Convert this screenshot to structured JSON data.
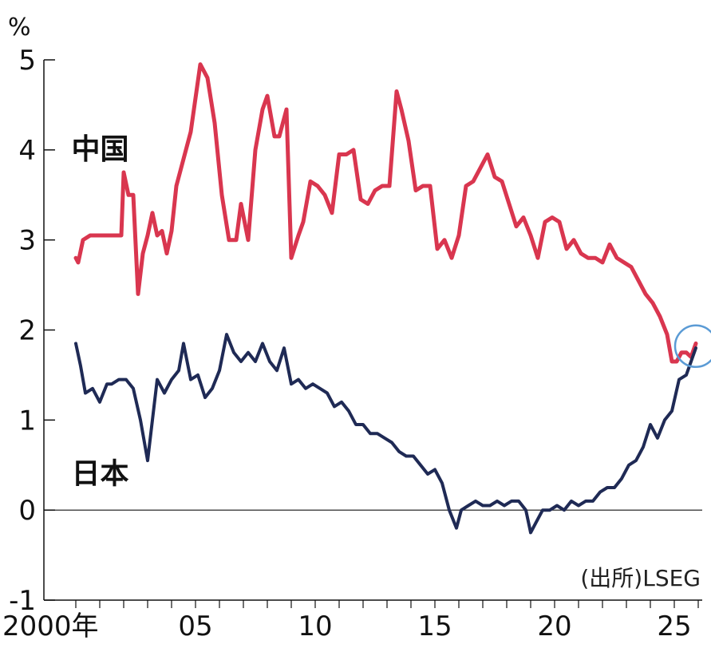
{
  "chart_data": {
    "type": "line",
    "unit_label": "%",
    "source": "(出所)LSEG",
    "ylim": [
      -1,
      5
    ],
    "xlim": [
      2000,
      2026
    ],
    "y_ticks": [
      {
        "value": 5,
        "label": "5"
      },
      {
        "value": 4,
        "label": "4"
      },
      {
        "value": 3,
        "label": "3"
      },
      {
        "value": 2,
        "label": "2"
      },
      {
        "value": 1,
        "label": "1"
      },
      {
        "value": 0,
        "label": "0"
      },
      {
        "value": -1,
        "label": "-1"
      }
    ],
    "x_ticks": [
      {
        "value": 2000,
        "label": "2000年"
      },
      {
        "value": 2005,
        "label": "05"
      },
      {
        "value": 2010,
        "label": "10"
      },
      {
        "value": 2015,
        "label": "15"
      },
      {
        "value": 2020,
        "label": "20"
      },
      {
        "value": 2025,
        "label": "25"
      }
    ],
    "highlight": {
      "x": 2025.9,
      "y": 1.82,
      "color": "#5b9bd5"
    },
    "series": [
      {
        "name": "中国",
        "color": "#d9364f",
        "x": [
          2000.0,
          2000.1,
          2000.3,
          2000.6,
          2001.0,
          2001.5,
          2001.9,
          2002.0,
          2002.2,
          2002.4,
          2002.6,
          2002.8,
          2002.9,
          2003.0,
          2003.2,
          2003.4,
          2003.6,
          2003.8,
          2004.0,
          2004.2,
          2004.5,
          2004.8,
          2005.2,
          2005.5,
          2005.8,
          2006.1,
          2006.4,
          2006.7,
          2006.9,
          2007.2,
          2007.5,
          2007.8,
          2008.0,
          2008.3,
          2008.5,
          2008.8,
          2009.0,
          2009.3,
          2009.5,
          2009.8,
          2010.1,
          2010.4,
          2010.7,
          2011.0,
          2011.3,
          2011.6,
          2011.9,
          2012.2,
          2012.5,
          2012.8,
          2013.1,
          2013.4,
          2013.6,
          2013.9,
          2014.2,
          2014.5,
          2014.8,
          2015.1,
          2015.4,
          2015.7,
          2016.0,
          2016.3,
          2016.6,
          2016.9,
          2017.2,
          2017.5,
          2017.8,
          2018.1,
          2018.4,
          2018.7,
          2019.0,
          2019.3,
          2019.6,
          2019.9,
          2020.2,
          2020.5,
          2020.8,
          2021.1,
          2021.4,
          2021.7,
          2022.0,
          2022.3,
          2022.6,
          2022.9,
          2023.2,
          2023.5,
          2023.8,
          2024.1,
          2024.4,
          2024.7,
          2024.9,
          2025.1,
          2025.3,
          2025.5,
          2025.7,
          2025.9
        ],
        "values": [
          2.8,
          2.75,
          3.0,
          3.05,
          3.05,
          3.05,
          3.05,
          3.75,
          3.5,
          3.5,
          2.4,
          2.85,
          2.95,
          3.05,
          3.3,
          3.05,
          3.1,
          2.85,
          3.1,
          3.6,
          3.9,
          4.2,
          4.95,
          4.8,
          4.3,
          3.5,
          3.0,
          3.0,
          3.4,
          3.0,
          4.0,
          4.45,
          4.6,
          4.15,
          4.15,
          4.45,
          2.8,
          3.05,
          3.2,
          3.65,
          3.6,
          3.5,
          3.3,
          3.95,
          3.95,
          4.0,
          3.45,
          3.4,
          3.55,
          3.6,
          3.6,
          4.65,
          4.45,
          4.1,
          3.55,
          3.6,
          3.6,
          2.9,
          3.0,
          2.8,
          3.05,
          3.6,
          3.65,
          3.8,
          3.95,
          3.7,
          3.65,
          3.4,
          3.15,
          3.25,
          3.05,
          2.8,
          3.2,
          3.25,
          3.2,
          2.9,
          3.0,
          2.85,
          2.8,
          2.8,
          2.75,
          2.95,
          2.8,
          2.75,
          2.7,
          2.55,
          2.4,
          2.3,
          2.15,
          1.95,
          1.65,
          1.65,
          1.75,
          1.75,
          1.7,
          1.85
        ]
      },
      {
        "name": "日本",
        "color": "#1f2a55",
        "x": [
          2000.0,
          2000.2,
          2000.4,
          2000.7,
          2001.0,
          2001.3,
          2001.5,
          2001.8,
          2002.1,
          2002.4,
          2002.7,
          2003.0,
          2003.2,
          2003.4,
          2003.7,
          2004.0,
          2004.3,
          2004.5,
          2004.8,
          2005.1,
          2005.4,
          2005.7,
          2006.0,
          2006.3,
          2006.6,
          2006.9,
          2007.2,
          2007.5,
          2007.8,
          2008.1,
          2008.4,
          2008.7,
          2009.0,
          2009.3,
          2009.6,
          2009.9,
          2010.2,
          2010.5,
          2010.8,
          2011.1,
          2011.4,
          2011.7,
          2012.0,
          2012.3,
          2012.6,
          2012.9,
          2013.2,
          2013.5,
          2013.8,
          2014.1,
          2014.4,
          2014.7,
          2015.0,
          2015.3,
          2015.6,
          2015.9,
          2016.1,
          2016.4,
          2016.7,
          2017.0,
          2017.3,
          2017.6,
          2017.9,
          2018.2,
          2018.5,
          2018.8,
          2019.0,
          2019.2,
          2019.5,
          2019.8,
          2020.1,
          2020.4,
          2020.7,
          2021.0,
          2021.3,
          2021.6,
          2021.9,
          2022.2,
          2022.5,
          2022.8,
          2023.1,
          2023.4,
          2023.7,
          2024.0,
          2024.3,
          2024.6,
          2024.9,
          2025.2,
          2025.5,
          2025.9
        ],
        "values": [
          1.85,
          1.6,
          1.3,
          1.35,
          1.2,
          1.4,
          1.4,
          1.45,
          1.45,
          1.35,
          1.0,
          0.55,
          1.0,
          1.45,
          1.3,
          1.45,
          1.55,
          1.85,
          1.45,
          1.5,
          1.25,
          1.35,
          1.55,
          1.95,
          1.75,
          1.65,
          1.75,
          1.65,
          1.85,
          1.65,
          1.55,
          1.8,
          1.4,
          1.45,
          1.35,
          1.4,
          1.35,
          1.3,
          1.15,
          1.2,
          1.1,
          0.95,
          0.95,
          0.85,
          0.85,
          0.8,
          0.75,
          0.65,
          0.6,
          0.6,
          0.5,
          0.4,
          0.45,
          0.3,
          0.0,
          -0.2,
          0.0,
          0.05,
          0.1,
          0.05,
          0.05,
          0.1,
          0.05,
          0.1,
          0.1,
          0.0,
          -0.25,
          -0.15,
          0.0,
          0.0,
          0.05,
          0.0,
          0.1,
          0.05,
          0.1,
          0.1,
          0.2,
          0.25,
          0.25,
          0.35,
          0.5,
          0.55,
          0.7,
          0.95,
          0.8,
          1.0,
          1.1,
          1.45,
          1.5,
          1.8
        ]
      }
    ],
    "series_label_positions": {
      "中国": {
        "x": 2000.15,
        "y": 3.9
      },
      "日本": {
        "x": 2000.15,
        "y": 0.3
      }
    }
  }
}
